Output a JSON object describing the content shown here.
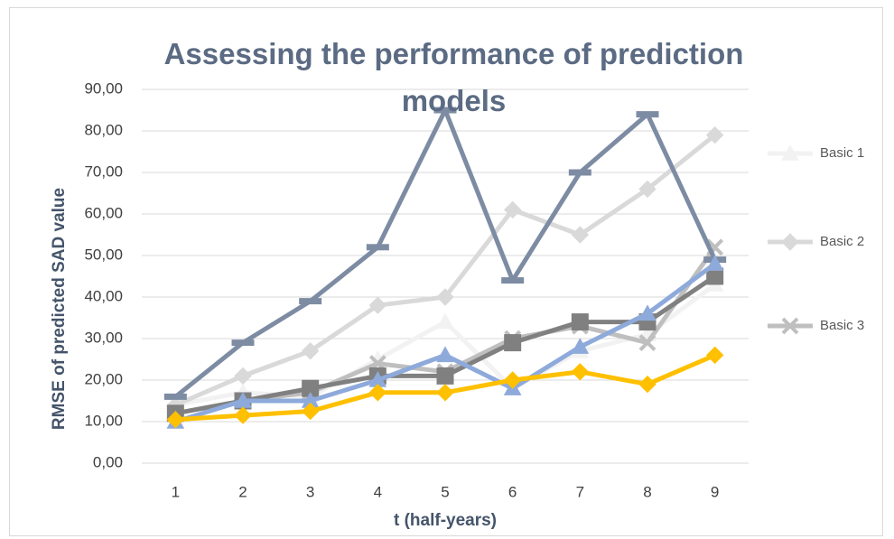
{
  "chart_data": {
    "type": "line",
    "title": "Assessing the performance of prediction models",
    "x_label": "t (half-years)",
    "y_label": "RMSE of predicted SAD value",
    "categories": [
      "1",
      "2",
      "3",
      "4",
      "5",
      "6",
      "7",
      "8",
      "9"
    ],
    "ylim": [
      0,
      90
    ],
    "yticks": [
      {
        "value": 0,
        "label": "0,00"
      },
      {
        "value": 10,
        "label": "10,00"
      },
      {
        "value": 20,
        "label": "20,00"
      },
      {
        "value": 30,
        "label": "30,00"
      },
      {
        "value": 40,
        "label": "40,00"
      },
      {
        "value": 50,
        "label": "50,00"
      },
      {
        "value": 60,
        "label": "60,00"
      },
      {
        "value": 70,
        "label": "70,00"
      },
      {
        "value": 80,
        "label": "80,00"
      },
      {
        "value": 90,
        "label": "90,00"
      }
    ],
    "grid": true,
    "legend": "right",
    "series": [
      {
        "name": "Basic 1",
        "color": "#f2f2f2",
        "marker": "triangle",
        "values": [
          14,
          17,
          16,
          25,
          34,
          18,
          27,
          31,
          43
        ]
      },
      {
        "name": "Basic 2",
        "color": "#d9d9d9",
        "marker": "diamond",
        "values": [
          14,
          21,
          27,
          38,
          40,
          61,
          55,
          66,
          79
        ]
      },
      {
        "name": "Basic 3",
        "color": "#bfbfbf",
        "marker": "x",
        "values": [
          12,
          15,
          17,
          24,
          22,
          30,
          33,
          29,
          52
        ]
      },
      {
        "color": "#7d8ca3",
        "marker": "dash",
        "values": [
          16,
          29,
          39,
          52,
          85,
          44,
          70,
          84,
          49
        ]
      },
      {
        "color": "#808080",
        "marker": "square",
        "values": [
          12,
          15,
          18,
          21,
          21,
          29,
          34,
          34,
          45
        ]
      },
      {
        "color": "#8eaadb",
        "marker": "triangle",
        "values": [
          10,
          15,
          15,
          20,
          26,
          18,
          28,
          36,
          48
        ]
      },
      {
        "color": "#ffc000",
        "marker": "diamond",
        "values": [
          10.5,
          11.5,
          12.5,
          17,
          17,
          20,
          22,
          19,
          26
        ]
      }
    ]
  }
}
